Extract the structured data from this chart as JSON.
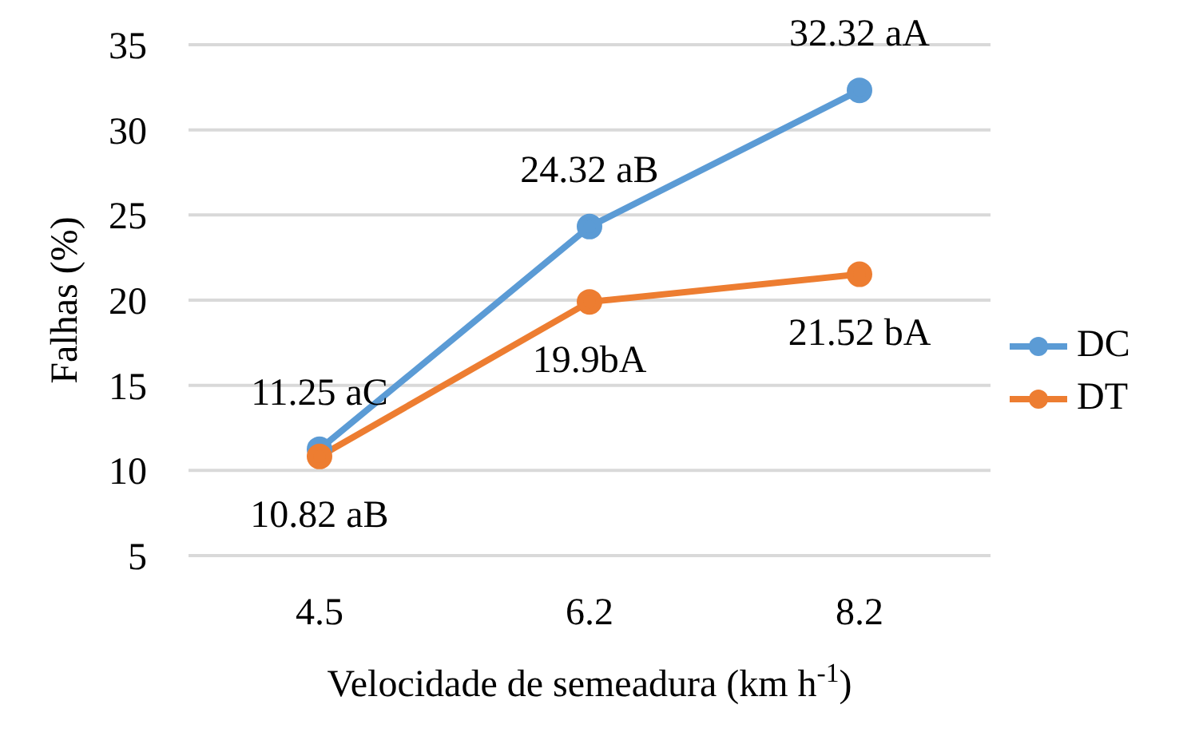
{
  "chart_data": {
    "type": "line",
    "xlabel": "Velocidade de semeadura (km h$^{-1}$)",
    "ylabel": "Falhas (%)",
    "categories": [
      "4.5",
      "6.2",
      "8.2"
    ],
    "series": [
      {
        "name": "DC",
        "color": "#5b9bd5",
        "values": [
          11.25,
          24.32,
          32.32
        ],
        "value_labels": [
          "11.25 aC",
          "24.32 aB",
          "32.32 aA"
        ]
      },
      {
        "name": "DT",
        "color": "#ed7d31",
        "values": [
          10.82,
          19.9,
          21.52
        ],
        "value_labels": [
          "10.82 aB",
          "19.9bA",
          "21.52 bA"
        ]
      }
    ],
    "ylim": [
      5,
      35
    ],
    "yticks": [
      5,
      10,
      15,
      20,
      25,
      30,
      35
    ],
    "grid": "y",
    "legend": "right",
    "marker": "circle",
    "line_style": "solid"
  }
}
